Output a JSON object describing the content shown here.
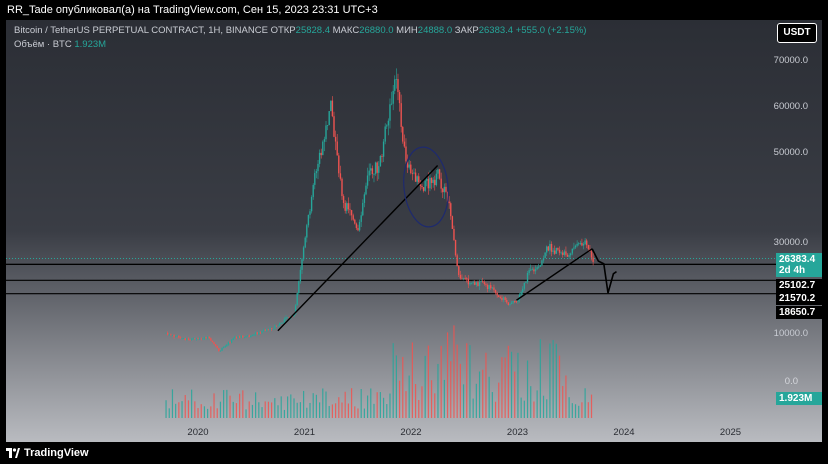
{
  "header": {
    "title": "RR_Tade опубликовал(а) на TradingView.com, Сен 15, 2023 23:31 UTC+3"
  },
  "legend": {
    "symbol": "Bitcoin / TetherUS PERPETUAL CONTRACT, 1H, BINANCE",
    "open_label": "ОТКР",
    "open_value": "25828.4",
    "high_label": "МАКС",
    "high_value": "26880.0",
    "low_label": "МИН",
    "low_value": "24888.0",
    "close_label": "ЗАКР",
    "close_value": "26383.4",
    "change": "+555.0 (+2.15%)",
    "volume_label": "Объём · BTC",
    "volume_value": "1.923M"
  },
  "currency_button": "USDT",
  "badges": [
    {
      "line1": "26383.4",
      "line2": "2d 4h",
      "color": "#26a69a"
    },
    {
      "line1": "25102.7",
      "color": "#000000"
    },
    {
      "line1": "21570.2",
      "color": "#000000"
    },
    {
      "line1": "18650.7",
      "color": "#000000"
    }
  ],
  "volume_badge": {
    "text": "1.923M",
    "color": "#26a69a"
  },
  "colors": {
    "up": "#26a69a",
    "down": "#ef5350"
  },
  "footer": {
    "brand": "TradingView"
  },
  "chart_data": {
    "type": "candlestick",
    "x_ticks": [
      "2020",
      "2021",
      "2022",
      "2023",
      "2024",
      "2025"
    ],
    "y_ticks": [
      "70000.0",
      "60000.0",
      "50000.0",
      "30000.0",
      "10000.0"
    ],
    "volume_tick": "0.0",
    "horizontal_levels": [
      26383.4,
      25102.7,
      21570.2,
      18650.7
    ],
    "price_path": [
      [
        2019.7,
        10000
      ],
      [
        2019.9,
        8500
      ],
      [
        2020.1,
        9000
      ],
      [
        2020.2,
        6000
      ],
      [
        2020.35,
        9000
      ],
      [
        2020.5,
        9500
      ],
      [
        2020.7,
        11000
      ],
      [
        2020.9,
        14000
      ],
      [
        2021.0,
        30000
      ],
      [
        2021.1,
        45000
      ],
      [
        2021.25,
        60000
      ],
      [
        2021.35,
        40000
      ],
      [
        2021.5,
        33000
      ],
      [
        2021.6,
        45000
      ],
      [
        2021.7,
        47000
      ],
      [
        2021.85,
        67000
      ],
      [
        2021.95,
        48000
      ],
      [
        2022.1,
        42000
      ],
      [
        2022.25,
        45000
      ],
      [
        2022.35,
        39000
      ],
      [
        2022.45,
        22000
      ],
      [
        2022.6,
        21000
      ],
      [
        2022.75,
        20000
      ],
      [
        2022.9,
        16500
      ],
      [
        2023.0,
        17000
      ],
      [
        2023.1,
        23000
      ],
      [
        2023.2,
        25000
      ],
      [
        2023.3,
        29000
      ],
      [
        2023.5,
        27000
      ],
      [
        2023.55,
        30000
      ],
      [
        2023.65,
        29500
      ],
      [
        2023.71,
        26200
      ]
    ],
    "trendlines": [
      {
        "from": [
          2020.75,
          10500
        ],
        "to": [
          2022.25,
          47000
        ]
      },
      {
        "from": [
          2022.99,
          17200
        ],
        "to": [
          2023.7,
          28500
        ]
      }
    ],
    "projection": [
      [
        2023.7,
        28500
      ],
      [
        2023.76,
        25800
      ],
      [
        2023.81,
        25200
      ],
      [
        2023.85,
        18800
      ],
      [
        2023.9,
        23000
      ],
      [
        2023.93,
        23500
      ]
    ]
  }
}
